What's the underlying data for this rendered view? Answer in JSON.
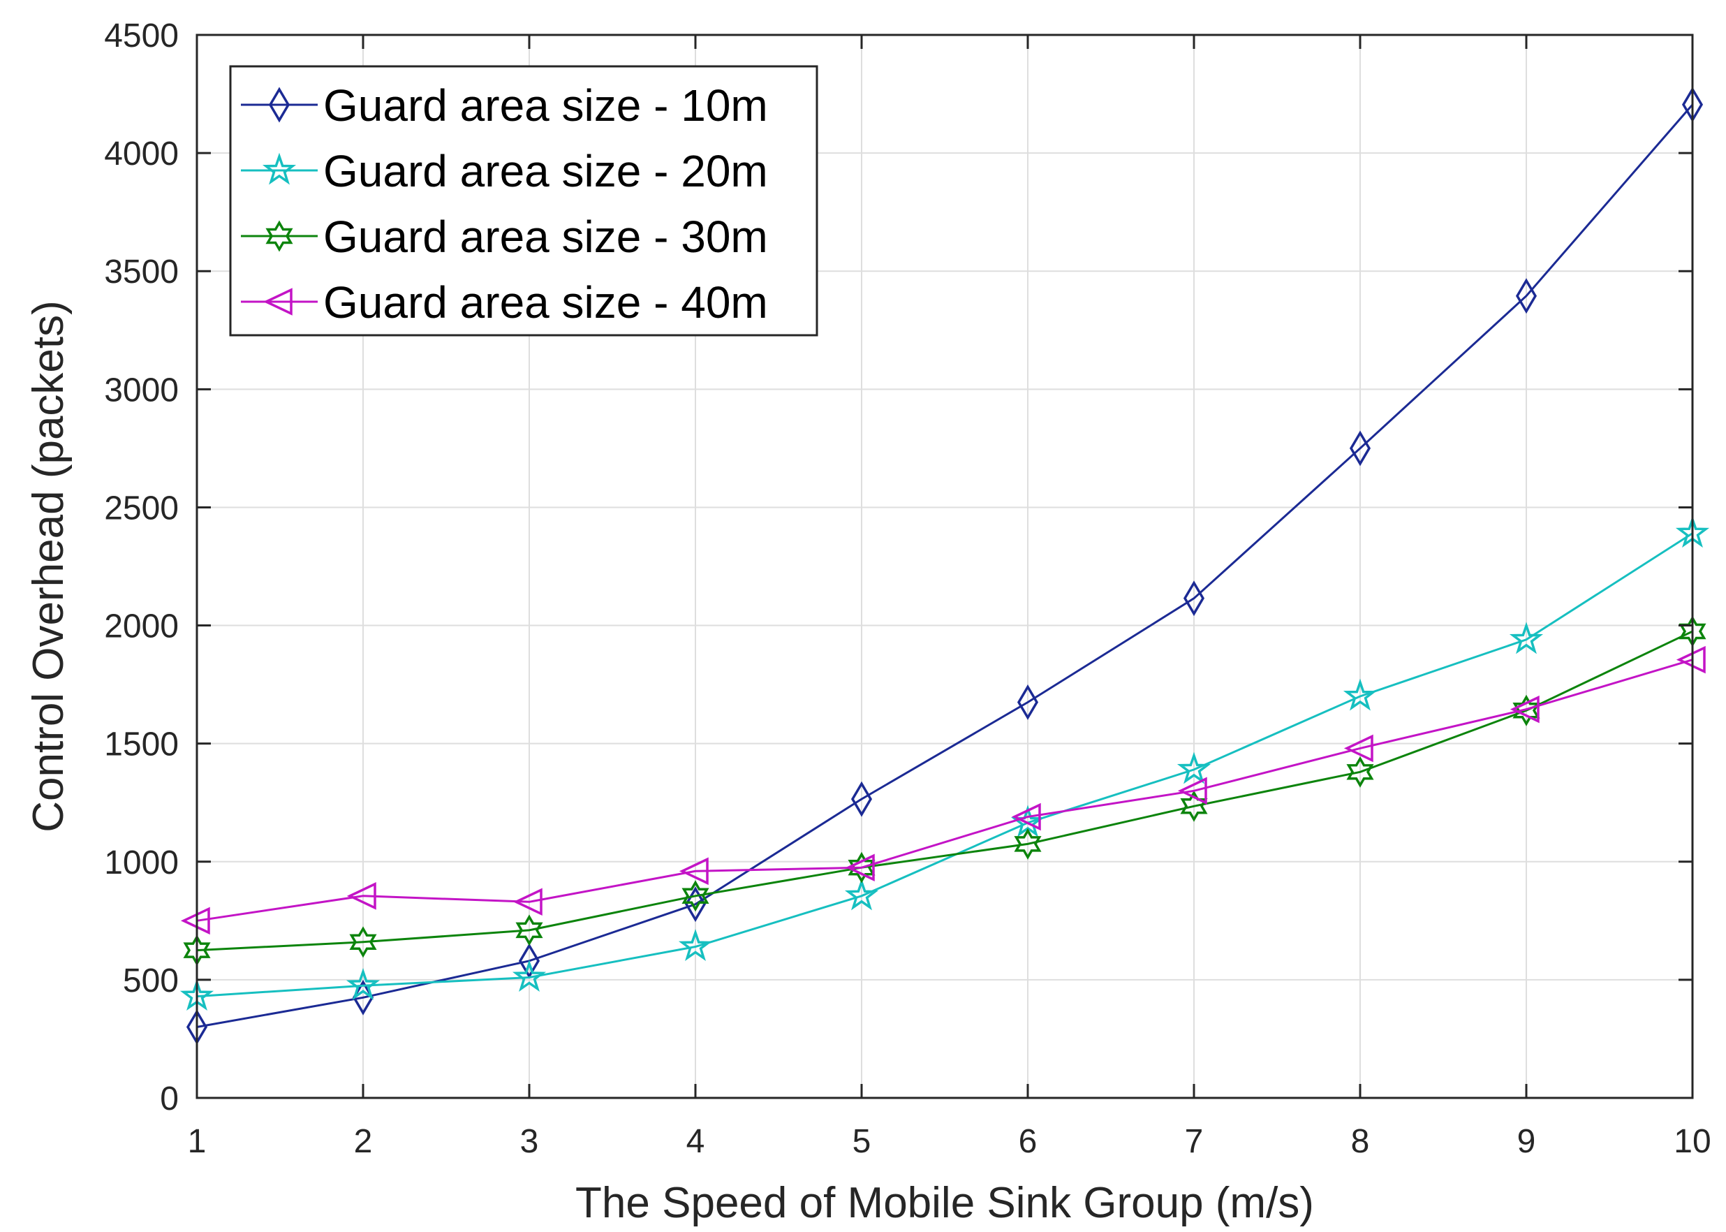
{
  "chart_data": {
    "type": "line",
    "title": "",
    "xlabel": "The Speed of Mobile Sink Group (m/s)",
    "ylabel": "Control Overhead (packets)",
    "xlim": [
      1,
      10
    ],
    "ylim": [
      0,
      4500
    ],
    "xticks": [
      1,
      2,
      3,
      4,
      5,
      6,
      7,
      8,
      9,
      10
    ],
    "yticks": [
      0,
      500,
      1000,
      1500,
      2000,
      2500,
      3000,
      3500,
      4000,
      4500
    ],
    "grid": true,
    "legend_position": "top-left",
    "x": [
      1,
      2,
      3,
      4,
      5,
      6,
      7,
      8,
      9,
      10
    ],
    "series": [
      {
        "name": "Guard area size - 10m",
        "color": "#1b2a94",
        "marker": "diamond",
        "values": [
          300,
          425,
          580,
          820,
          1265,
          1675,
          2115,
          2750,
          3395,
          4205
        ]
      },
      {
        "name": "Guard area size - 20m",
        "color": "#16bfc0",
        "marker": "star5",
        "values": [
          430,
          475,
          510,
          640,
          855,
          1165,
          1390,
          1700,
          1940,
          2390
        ]
      },
      {
        "name": "Guard area size - 30m",
        "color": "#0c840c",
        "marker": "hexagram",
        "values": [
          625,
          660,
          710,
          855,
          975,
          1075,
          1235,
          1380,
          1640,
          1975
        ]
      },
      {
        "name": "Guard area size - 40m",
        "color": "#c314c6",
        "marker": "triangle-left",
        "values": [
          750,
          855,
          830,
          960,
          975,
          1190,
          1300,
          1480,
          1645,
          1855
        ]
      }
    ]
  }
}
